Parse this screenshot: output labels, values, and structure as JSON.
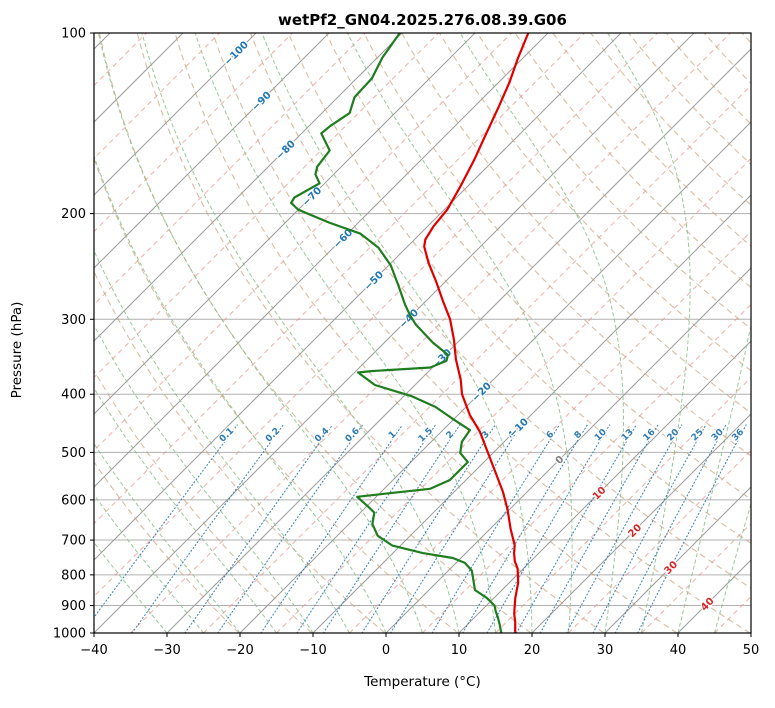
{
  "title": "wetPf2_GN04.2025.276.08.39.G06",
  "axes": {
    "x_label": "Temperature (°C)",
    "y_label": "Pressure (hPa)",
    "x_ticks": [
      -40,
      -30,
      -20,
      -10,
      0,
      10,
      20,
      30,
      40,
      50
    ],
    "y_ticks": [
      100,
      200,
      300,
      400,
      500,
      600,
      700,
      800,
      900,
      1000
    ],
    "x_range": [
      -40,
      50
    ],
    "p_range": [
      100,
      1000
    ]
  },
  "colors": {
    "temperature": "#e00000",
    "dewpoint": "#1e7d1e",
    "isotherm": "#9c9c9c",
    "isotherm_minor": "#ee9489",
    "grid": "#b0b0b0",
    "dry_adiabat": "#c7a17a",
    "moist_adiabat": "#86c086",
    "mixing": "#2d7bb6",
    "label_neg": "#1f77b4",
    "label_zero": "#808080",
    "label_pos": "#d62728"
  },
  "chart_data": {
    "type": "line",
    "chart_kind": "skew-t-log-p",
    "skew_degrees": 45,
    "title": "wetPf2_GN04.2025.276.08.39.G06",
    "xlabel": "Temperature (°C)",
    "ylabel": "Pressure (hPa)",
    "x_range_c": [
      -40,
      50
    ],
    "pressure_range_hpa": [
      100,
      1000
    ],
    "series": [
      {
        "name": "temperature",
        "label": "Temperature profile (red)",
        "points": [
          [
            100,
            -62.7
          ],
          [
            110,
            -60.7
          ],
          [
            121,
            -58.5
          ],
          [
            133,
            -56.6
          ],
          [
            147,
            -54.7
          ],
          [
            163,
            -52.7
          ],
          [
            180,
            -51
          ],
          [
            197,
            -49.6
          ],
          [
            210,
            -49.2
          ],
          [
            221,
            -48.5
          ],
          [
            227,
            -47.7
          ],
          [
            242,
            -44.8
          ],
          [
            260,
            -41.2
          ],
          [
            279,
            -37.8
          ],
          [
            300,
            -34.2
          ],
          [
            325,
            -30.8
          ],
          [
            350,
            -27.9
          ],
          [
            378,
            -24.5
          ],
          [
            400,
            -22.3
          ],
          [
            433,
            -18.4
          ],
          [
            462,
            -14.7
          ],
          [
            500,
            -10.8
          ],
          [
            540,
            -7
          ],
          [
            582,
            -3.3
          ],
          [
            622,
            -0.3
          ],
          [
            672,
            2.9
          ],
          [
            714,
            5.6
          ],
          [
            736,
            6.6
          ],
          [
            759,
            7.8
          ],
          [
            781,
            9.2
          ],
          [
            824,
            11.2
          ],
          [
            874,
            12.9
          ],
          [
            928,
            14.9
          ],
          [
            959,
            16.2
          ],
          [
            1000,
            17.7
          ]
        ]
      },
      {
        "name": "dewpoint",
        "label": "Dew point profile (green)",
        "points": [
          [
            100,
            -80.3
          ],
          [
            110,
            -79.3
          ],
          [
            119,
            -77.9
          ],
          [
            128,
            -77.7
          ],
          [
            136,
            -76.2
          ],
          [
            143,
            -77.1
          ],
          [
            147,
            -77.3
          ],
          [
            157,
            -73.8
          ],
          [
            167,
            -73.3
          ],
          [
            172,
            -72.5
          ],
          [
            178,
            -70.7
          ],
          [
            188,
            -72.2
          ],
          [
            192,
            -71.9
          ],
          [
            197,
            -70
          ],
          [
            207,
            -64
          ],
          [
            216,
            -58.2
          ],
          [
            228,
            -53.8
          ],
          [
            244,
            -49.7
          ],
          [
            263,
            -46
          ],
          [
            284,
            -42.3
          ],
          [
            295,
            -40.3
          ],
          [
            306,
            -38.2
          ],
          [
            328,
            -33.4
          ],
          [
            344,
            -29.6
          ],
          [
            352,
            -29
          ],
          [
            361,
            -30.3
          ],
          [
            366,
            -37.9
          ],
          [
            368,
            -39.5
          ],
          [
            386,
            -35.5
          ],
          [
            403,
            -28.9
          ],
          [
            420,
            -24.2
          ],
          [
            442,
            -19.7
          ],
          [
            459,
            -16.3
          ],
          [
            480,
            -15.8
          ],
          [
            501,
            -14.5
          ],
          [
            519,
            -12.2
          ],
          [
            535,
            -12.2
          ],
          [
            556,
            -12.2
          ],
          [
            575,
            -13.7
          ],
          [
            586,
            -19.2
          ],
          [
            593,
            -22.6
          ],
          [
            617,
            -19.6
          ],
          [
            630,
            -18.1
          ],
          [
            658,
            -16.8
          ],
          [
            688,
            -14.5
          ],
          [
            715,
            -11.1
          ],
          [
            736,
            -5.9
          ],
          [
            750,
            -1.1
          ],
          [
            764,
            1.2
          ],
          [
            787,
            3.2
          ],
          [
            848,
            6.3
          ],
          [
            874,
            9
          ],
          [
            900,
            11.1
          ],
          [
            921,
            12.1
          ],
          [
            942,
            13.2
          ],
          [
            970,
            14.5
          ],
          [
            1000,
            15.8
          ]
        ]
      }
    ],
    "background": {
      "isotherms": {
        "t_min": -120,
        "t_max": 50,
        "step": 10
      },
      "isotherms_minor": {
        "t_min": -115,
        "t_max": 45,
        "step": 10
      },
      "isotherm_labels": [
        {
          "t": -100,
          "p": 109
        },
        {
          "t": -90,
          "p": 131
        },
        {
          "t": -80,
          "p": 158
        },
        {
          "t": -70,
          "p": 189
        },
        {
          "t": -60,
          "p": 222
        },
        {
          "t": -50,
          "p": 261
        },
        {
          "t": -40,
          "p": 302
        },
        {
          "t": -30,
          "p": 352
        },
        {
          "t": -20,
          "p": 400
        },
        {
          "t": -10,
          "p": 459
        },
        {
          "t": 0,
          "p": 519
        },
        {
          "t": 10,
          "p": 590
        },
        {
          "t": 20,
          "p": 681
        },
        {
          "t": 30,
          "p": 785
        },
        {
          "t": 40,
          "p": 903
        }
      ],
      "dry_adiabats": {
        "theta_min": 253,
        "theta_max": 473,
        "step": 10
      },
      "moist_adiabats": {
        "t0_min": -30,
        "t0_max": 45,
        "step": 5
      },
      "mixing_ratio": {
        "values": [
          0.1,
          0.2,
          0.4,
          0.6,
          1,
          1.5,
          2,
          3,
          4,
          6,
          8,
          10,
          13,
          16,
          20,
          25,
          30,
          36
        ],
        "label_pressure": 471,
        "p_top": 450
      }
    }
  }
}
